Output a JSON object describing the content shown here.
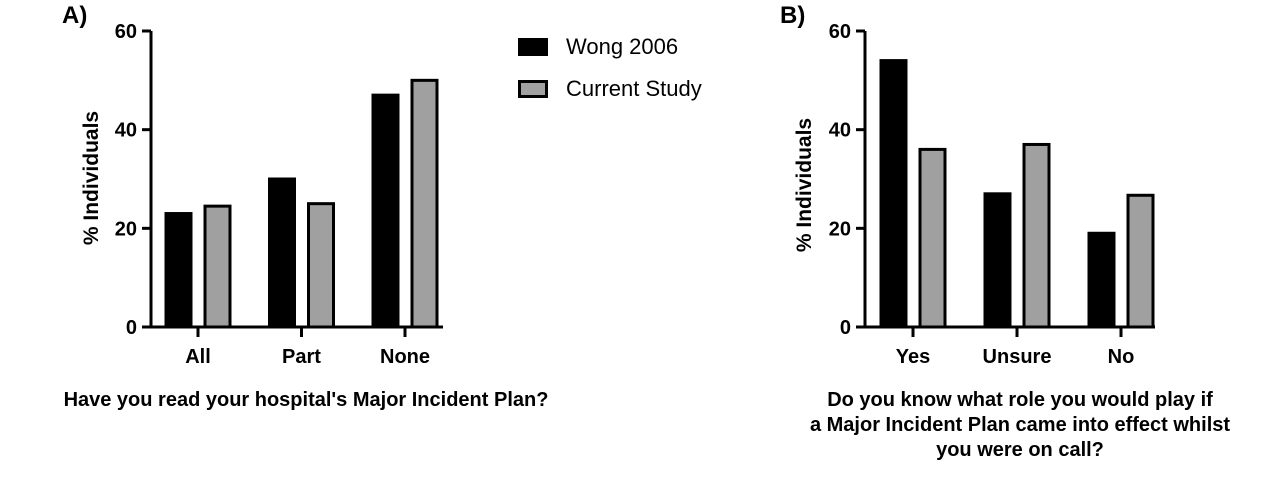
{
  "legend": {
    "items": [
      {
        "label": "Wong 2006",
        "color": "#000000"
      },
      {
        "label": "Current Study",
        "color": "#a0a0a0"
      }
    ]
  },
  "panels": [
    {
      "label": "A)",
      "question": "Have you read your hospital's Major Incident Plan?"
    },
    {
      "label": "B)",
      "question_lines": [
        "Do you know what role you would play if",
        "a Major Incident Plan came into effect whilst",
        "you were on call?"
      ]
    }
  ],
  "chart_data": [
    {
      "type": "bar",
      "title": "",
      "xlabel": "Have you read your hospital's Major Incident Plan?",
      "ylabel": "% Individuals",
      "ylim": [
        0,
        60
      ],
      "yticks": [
        0,
        20,
        40,
        60
      ],
      "categories": [
        "All",
        "Part",
        "None"
      ],
      "series": [
        {
          "name": "Wong 2006",
          "values": [
            23,
            30,
            47
          ]
        },
        {
          "name": "Current Study",
          "values": [
            24.5,
            25,
            50
          ]
        }
      ],
      "grid": false,
      "legend": "right"
    },
    {
      "type": "bar",
      "title": "",
      "xlabel": "Do you know what role you would play if a Major Incident Plan came into effect whilst you were on call?",
      "ylabel": "% Individuals",
      "ylim": [
        0,
        60
      ],
      "yticks": [
        0,
        20,
        40,
        60
      ],
      "categories": [
        "Yes",
        "Unsure",
        "No"
      ],
      "series": [
        {
          "name": "Wong 2006",
          "values": [
            54,
            27,
            19
          ]
        },
        {
          "name": "Current Study",
          "values": [
            36,
            37,
            26.7
          ]
        }
      ],
      "grid": false,
      "legend": "none"
    }
  ]
}
